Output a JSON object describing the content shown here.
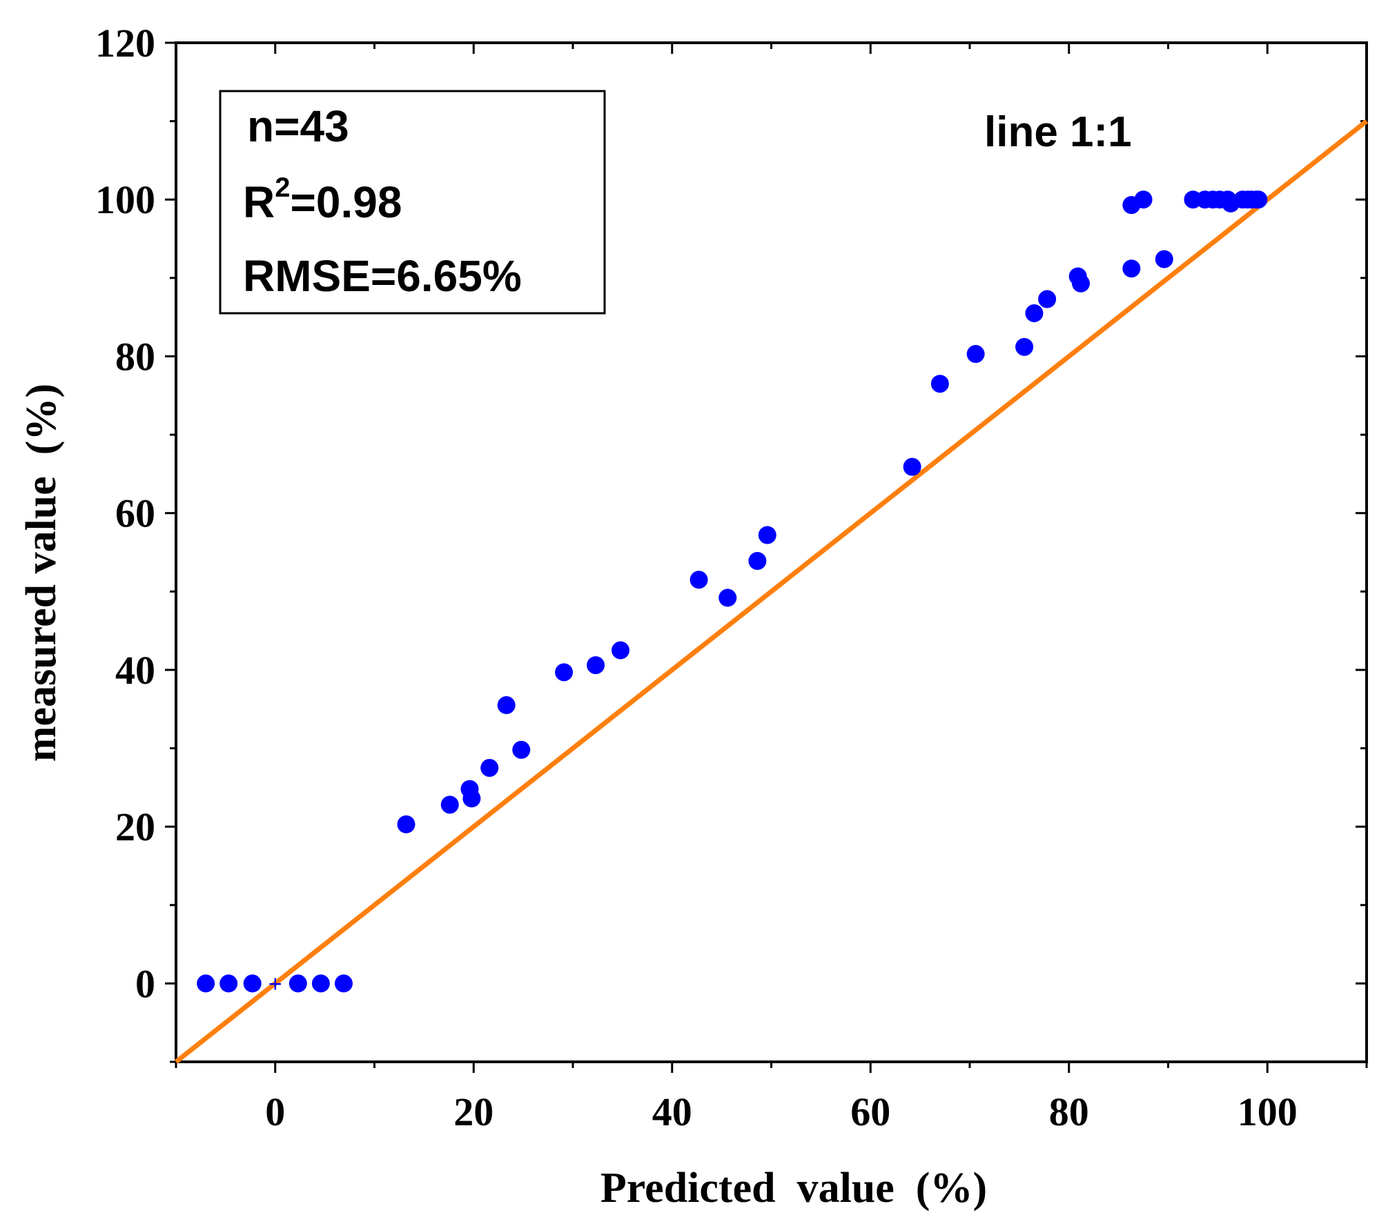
{
  "chart_data": {
    "type": "scatter",
    "title": "",
    "xlabel": "Predicted  value  (%)",
    "ylabel": "measured value  (%)",
    "xlim": [
      -10,
      110
    ],
    "ylim": [
      -10,
      120
    ],
    "xticks": [
      0,
      20,
      40,
      60,
      80,
      100
    ],
    "xtick_labels": [
      "0",
      "20",
      "40",
      "60",
      "80",
      "100"
    ],
    "yticks": [
      0,
      20,
      40,
      60,
      80,
      100,
      120
    ],
    "ytick_labels": [
      "0",
      "20",
      "40",
      "60",
      "80",
      "100",
      "120"
    ],
    "grid": false,
    "stats": {
      "n": "n=43",
      "r2_prefix": "R",
      "r2_sup": "2",
      "r2_value": "=0.98",
      "rmse": "RMSE=6.65%"
    },
    "reference_line": {
      "label": "line 1:1",
      "slope": 1,
      "intercept": 0,
      "color": "#ff7f0e"
    },
    "marker_color": "#0000ff",
    "origin_marker": "+",
    "series": [
      {
        "name": "samples",
        "x": [
          -7,
          -4.7,
          -2.3,
          2.3,
          4.6,
          6.9,
          13.2,
          17.6,
          19.6,
          19.8,
          21.6,
          23.3,
          24.8,
          29.1,
          32.3,
          34.8,
          42.7,
          45.6,
          48.6,
          49.6,
          64.2,
          67.0,
          70.6,
          75.5,
          76.5,
          77.8,
          80.9,
          81.2,
          86.3,
          86.3,
          87.5,
          89.6,
          92.5,
          93.7,
          94.5,
          95.2,
          96.0,
          96.3,
          97.5,
          98.0,
          98.4,
          98.9,
          99.1
        ],
        "y": [
          0,
          0,
          0,
          0,
          0,
          0,
          20.3,
          22.8,
          24.8,
          23.6,
          27.5,
          35.5,
          29.8,
          39.7,
          40.6,
          42.5,
          51.5,
          49.2,
          53.9,
          57.2,
          65.9,
          76.5,
          80.3,
          81.2,
          85.5,
          87.3,
          90.2,
          89.3,
          91.2,
          99.3,
          100,
          92.4,
          100,
          100,
          100,
          100,
          100,
          99.5,
          100,
          100,
          100,
          100,
          100
        ]
      }
    ]
  }
}
